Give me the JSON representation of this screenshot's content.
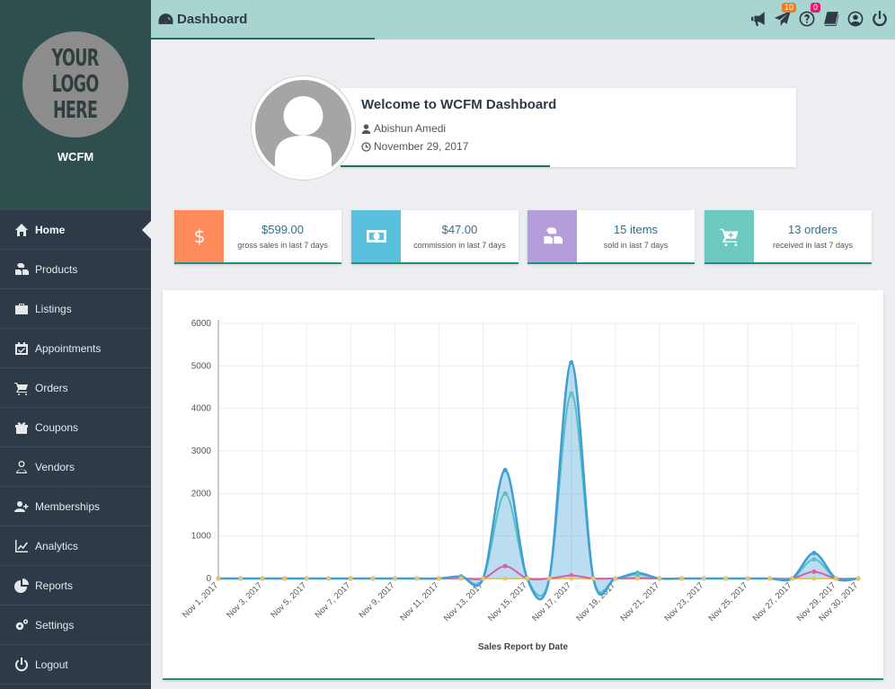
{
  "brand": {
    "logo_lines": [
      "YOUR",
      "LOGO",
      "HERE"
    ],
    "name": "WCFM"
  },
  "sidebar": {
    "items": [
      {
        "label": "Home",
        "icon": "home-icon",
        "active": true
      },
      {
        "label": "Products",
        "icon": "cubes-icon"
      },
      {
        "label": "Listings",
        "icon": "briefcase-icon"
      },
      {
        "label": "Appointments",
        "icon": "calendar-check-icon"
      },
      {
        "label": "Orders",
        "icon": "cart-icon"
      },
      {
        "label": "Coupons",
        "icon": "gift-icon"
      },
      {
        "label": "Vendors",
        "icon": "user-icon"
      },
      {
        "label": "Memberships",
        "icon": "user-plus-icon"
      },
      {
        "label": "Analytics",
        "icon": "line-chart-icon"
      },
      {
        "label": "Reports",
        "icon": "pie-chart-icon"
      },
      {
        "label": "Settings",
        "icon": "gears-icon"
      },
      {
        "label": "Logout",
        "icon": "power-icon"
      }
    ]
  },
  "header": {
    "title": "Dashboard",
    "notifications": {
      "messages_count": "10",
      "enquiry_count": "0"
    }
  },
  "welcome": {
    "title": "Welcome to WCFM Dashboard",
    "user": "Abishun Amedi",
    "date": "November 29, 2017"
  },
  "stats": [
    {
      "value": "$599.00",
      "label": "gross sales in last 7 days",
      "color": "#ff8a5c",
      "icon": "dollar-icon"
    },
    {
      "value": "$47.00",
      "label": "commission in last 7 days",
      "color": "#5bc0de",
      "icon": "money-icon"
    },
    {
      "value": "15 items",
      "label": "sold in last 7 days",
      "color": "#b39ddb",
      "icon": "cubes-icon"
    },
    {
      "value": "13 orders",
      "label": "received in last 7 days",
      "color": "#6cc9bf",
      "icon": "cart-plus-icon"
    }
  ],
  "chart_data": {
    "type": "area",
    "title": "",
    "xlabel": "Sales Report by Date",
    "ylabel": "",
    "ylim": [
      0,
      6000
    ],
    "yticks": [
      0,
      1000,
      2000,
      3000,
      4000,
      5000,
      6000
    ],
    "grid": true,
    "xtick_labels": [
      "Nov 1, 2017",
      "Nov 3, 2017",
      "Nov 5, 2017",
      "Nov 7, 2017",
      "Nov 9, 2017",
      "Nov 11, 2017",
      "Nov 13, 2017",
      "Nov 15, 2017",
      "Nov 17, 2017",
      "Nov 19, 2017",
      "Nov 21, 2017",
      "Nov 23, 2017",
      "Nov 25, 2017",
      "Nov 27, 2017",
      "Nov 29, 2017",
      "Nov 30, 2017"
    ],
    "x": [
      1,
      2,
      3,
      4,
      5,
      6,
      7,
      8,
      9,
      10,
      11,
      12,
      13,
      14,
      15,
      16,
      17,
      18,
      19,
      20,
      21,
      22,
      23,
      24,
      25,
      26,
      27,
      28,
      29,
      30
    ],
    "series": [
      {
        "color": "#3d9fd6",
        "fill": true,
        "values": [
          0,
          0,
          0,
          0,
          0,
          0,
          0,
          0,
          0,
          0,
          0,
          50,
          0,
          2550,
          0,
          0,
          5080,
          0,
          0,
          130,
          0,
          0,
          0,
          0,
          0,
          0,
          0,
          600,
          0,
          0
        ]
      },
      {
        "color": "#5cc0c0",
        "fill": false,
        "values": [
          0,
          0,
          0,
          0,
          0,
          0,
          0,
          0,
          0,
          0,
          0,
          30,
          0,
          2000,
          0,
          0,
          4350,
          0,
          0,
          100,
          0,
          0,
          0,
          0,
          0,
          0,
          0,
          450,
          0,
          0
        ]
      },
      {
        "color": "#d9609f",
        "fill": false,
        "values": [
          0,
          0,
          0,
          0,
          0,
          0,
          0,
          0,
          0,
          0,
          0,
          5,
          0,
          290,
          0,
          0,
          70,
          0,
          0,
          10,
          0,
          0,
          0,
          0,
          0,
          0,
          0,
          160,
          0,
          0
        ]
      },
      {
        "color": "#e8c36a",
        "fill": false,
        "values": [
          0,
          0,
          0,
          0,
          0,
          0,
          0,
          0,
          0,
          0,
          0,
          0,
          0,
          0,
          0,
          0,
          0,
          0,
          0,
          0,
          0,
          0,
          0,
          0,
          0,
          0,
          0,
          0,
          0,
          0
        ]
      }
    ]
  }
}
